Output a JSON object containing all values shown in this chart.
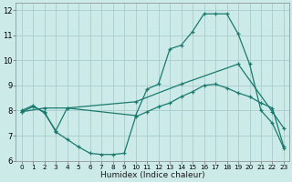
{
  "xlabel": "Humidex (Indice chaleur)",
  "background_color": "#cceae8",
  "grid_color": "#aacccc",
  "line_color": "#1a7a6e",
  "xlim": [
    -0.5,
    23.5
  ],
  "ylim": [
    6,
    12.3
  ],
  "xticks": [
    0,
    1,
    2,
    3,
    4,
    5,
    6,
    7,
    8,
    9,
    10,
    11,
    12,
    13,
    14,
    15,
    16,
    17,
    18,
    19,
    20,
    21,
    22,
    23
  ],
  "yticks": [
    6,
    7,
    8,
    9,
    10,
    11,
    12
  ],
  "line1_x": [
    0,
    1,
    2,
    3,
    4,
    10,
    11,
    12,
    13,
    14,
    15,
    16,
    17,
    18,
    19,
    20,
    21,
    22,
    23
  ],
  "line1_y": [
    8.0,
    8.2,
    7.9,
    7.2,
    8.1,
    7.8,
    8.85,
    9.05,
    10.45,
    10.6,
    11.15,
    11.85,
    11.85,
    11.85,
    11.05,
    9.85,
    8.0,
    7.5,
    6.5
  ],
  "line2_x": [
    0,
    1,
    2,
    3,
    4,
    5,
    6,
    7,
    8,
    9,
    10,
    11,
    12,
    13,
    14,
    15,
    16,
    17,
    18,
    19,
    20,
    21,
    22,
    23
  ],
  "line2_y": [
    7.95,
    8.15,
    7.95,
    7.15,
    6.85,
    6.55,
    6.3,
    6.25,
    6.25,
    6.3,
    7.75,
    7.95,
    8.15,
    8.3,
    8.55,
    8.75,
    9.0,
    9.05,
    8.9,
    8.7,
    8.55,
    8.3,
    8.1,
    6.55
  ],
  "line3_x": [
    0,
    2,
    4,
    10,
    14,
    19,
    22,
    23
  ],
  "line3_y": [
    7.95,
    8.1,
    8.1,
    8.35,
    9.05,
    9.85,
    7.95,
    7.3
  ]
}
